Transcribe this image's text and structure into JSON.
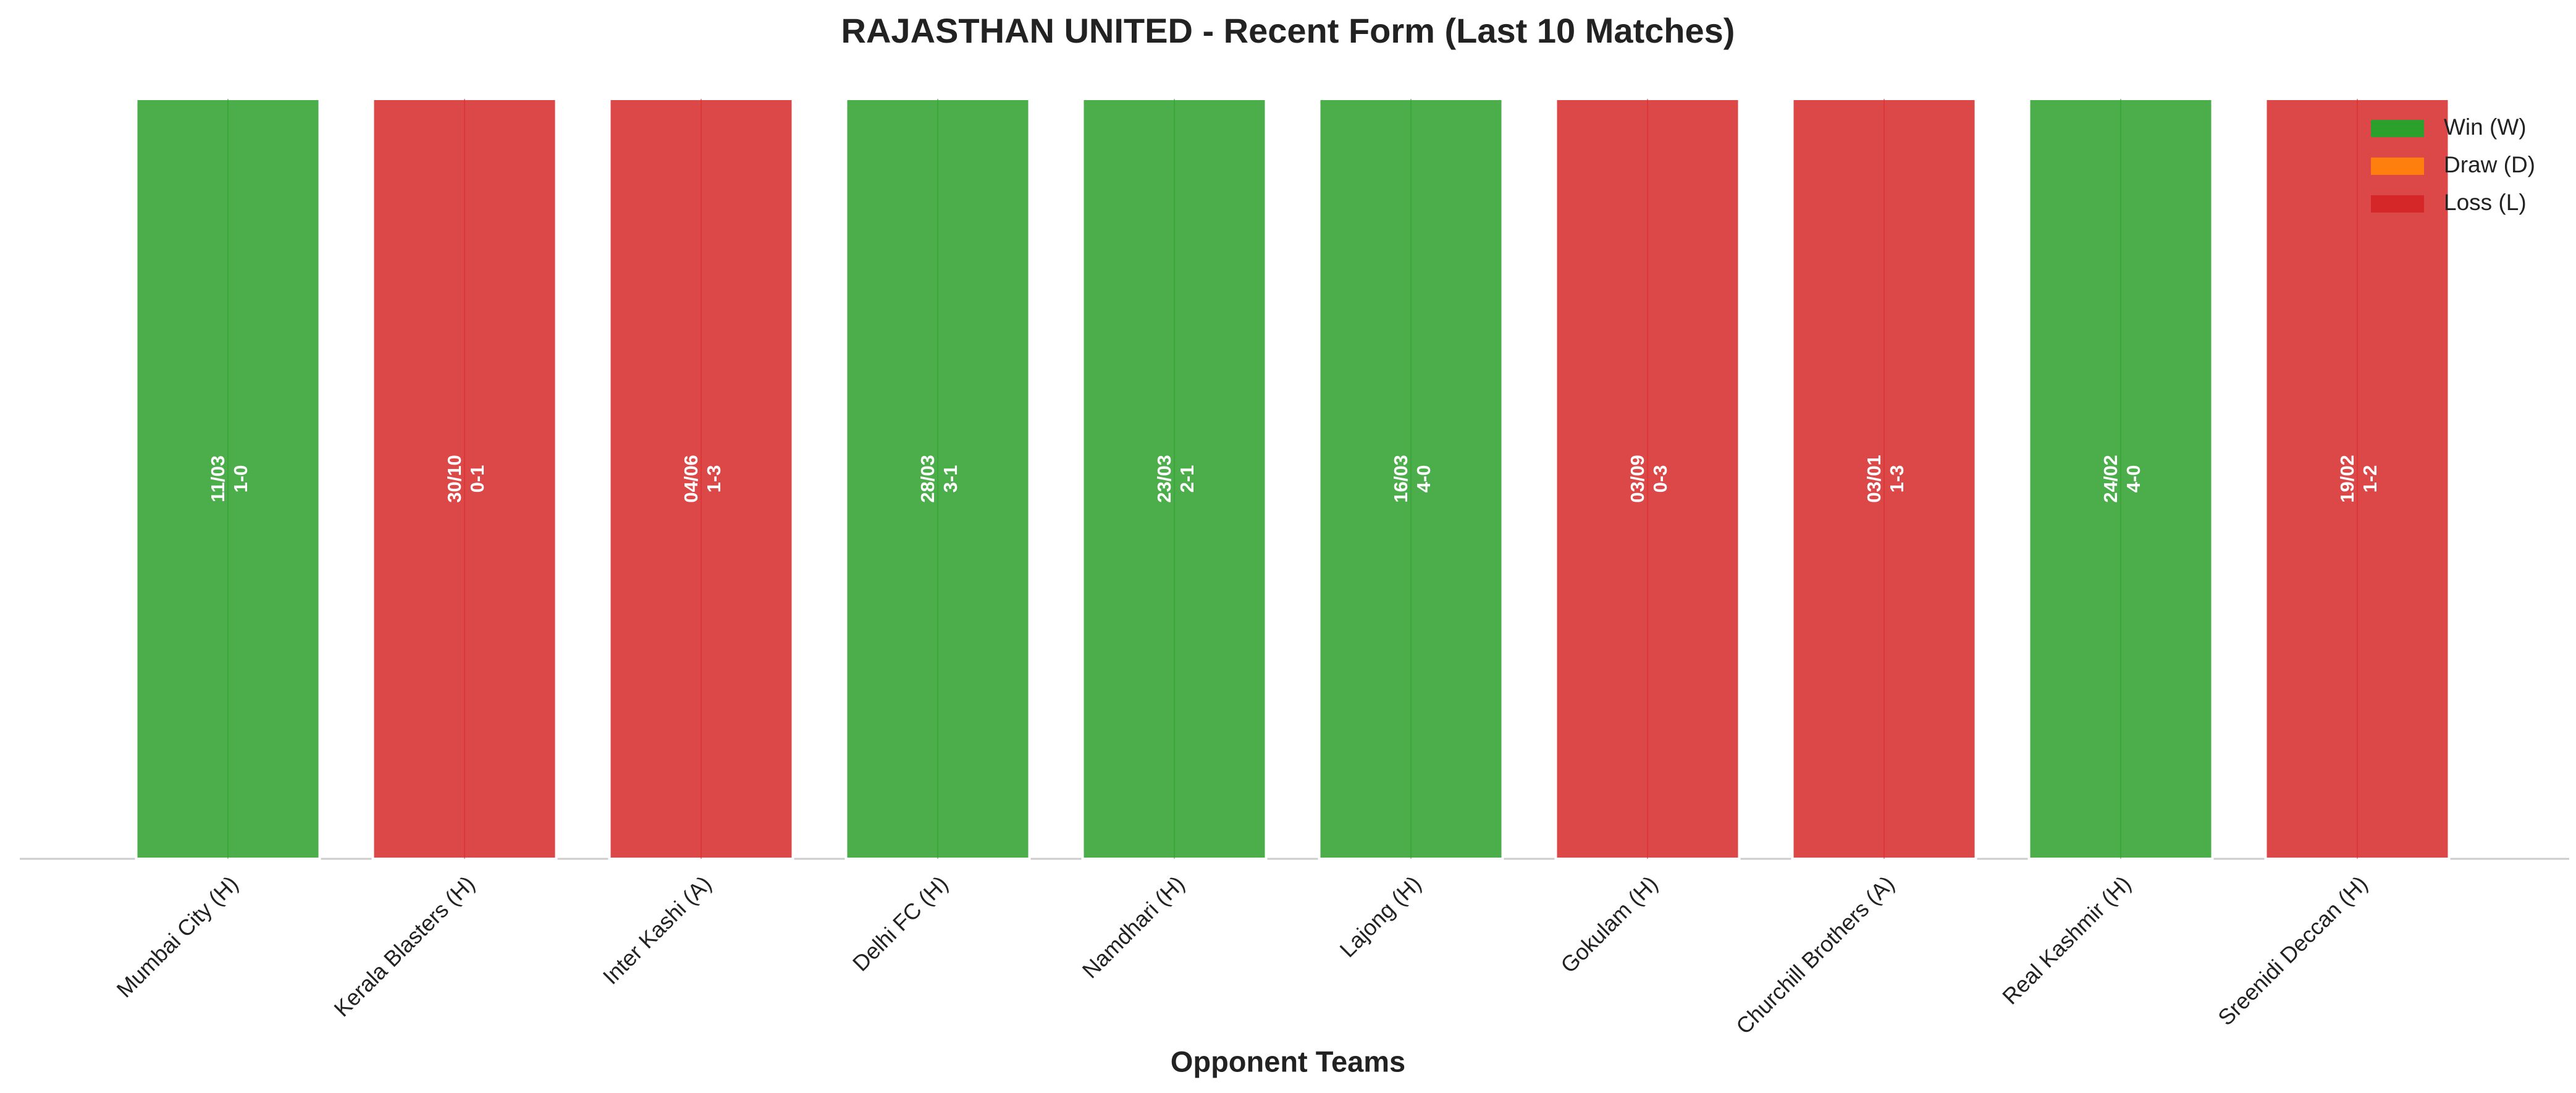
{
  "chart_data": {
    "type": "bar",
    "title": "RAJASTHAN UNITED - Recent Form (Last 10 Matches)",
    "x_label": "Opponent Teams",
    "categories": [
      "Mumbai City (H)",
      "Kerala Blasters (H)",
      "Inter Kashi (A)",
      "Delhi FC (H)",
      "Namdhari (H)",
      "Lajong (H)",
      "Gokulam (H)",
      "Churchill Brothers (A)",
      "Real Kashmir (H)",
      "Sreenidi Deccan (H)"
    ],
    "values": [
      1,
      1,
      1,
      1,
      1,
      1,
      1,
      1,
      1,
      1
    ],
    "dates": [
      "11/03",
      "30/10",
      "04/06",
      "28/03",
      "23/03",
      "16/03",
      "03/09",
      "03/01",
      "24/02",
      "19/02"
    ],
    "scores": [
      "1-0",
      "0-1",
      "1-3",
      "3-1",
      "2-1",
      "4-0",
      "0-3",
      "1-3",
      "4-0",
      "1-2"
    ],
    "colors": [
      "#2ca02c",
      "#d62728",
      "#d62728",
      "#2ca02c",
      "#2ca02c",
      "#2ca02c",
      "#d62728",
      "#d62728",
      "#2ca02c",
      "#d62728"
    ],
    "ylim": [
      0,
      1
    ],
    "legend": [
      {
        "name": "Win (W)",
        "color": "#2ca02c"
      },
      {
        "name": "Draw (D)",
        "color": "#ff7f0e"
      },
      {
        "name": "Loss (L)",
        "color": "#d62728"
      }
    ],
    "legend_position": "upper right"
  }
}
